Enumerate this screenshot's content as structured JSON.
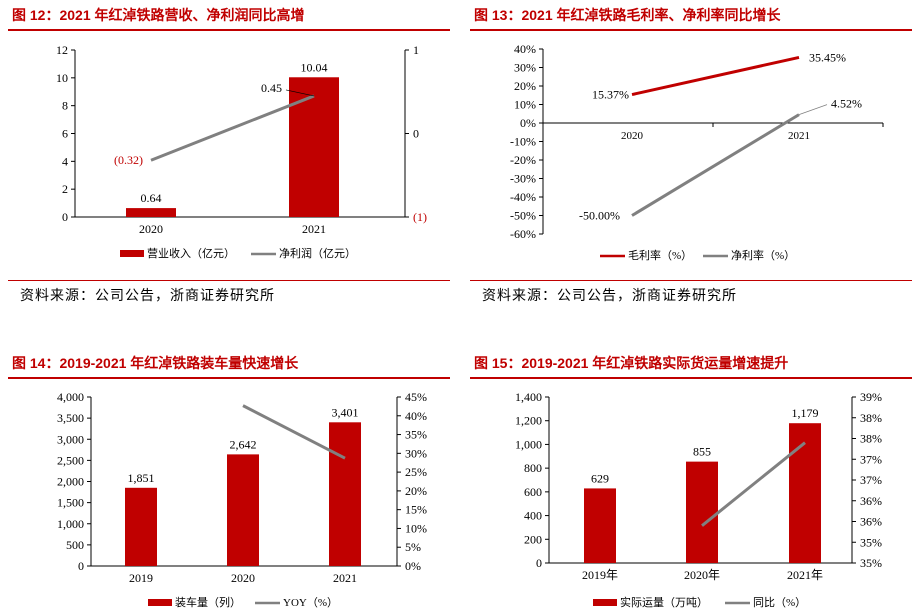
{
  "panels": [
    {
      "title": "图 12：2021 年红淖铁路营收、净利润同比高增",
      "source": "资料来源：公司公告，浙商证券研究所",
      "chart_data": {
        "type": "bar+line",
        "categories": [
          "2020",
          "2021"
        ],
        "bar": {
          "name": "营业收入（亿元）",
          "values": [
            0.64,
            10.04
          ],
          "labels": [
            "0.64",
            "10.04"
          ],
          "color": "#c00000"
        },
        "line": {
          "name": "净利润（亿元）",
          "values": [
            -0.32,
            0.45
          ],
          "labels": [
            "(0.32)",
            "0.45"
          ],
          "label_colors": [
            "#c00000",
            "#000000"
          ],
          "color": "#808080"
        },
        "ylim_left": [
          0,
          12
        ],
        "yticks_left": [
          "0",
          "2",
          "4",
          "6",
          "8",
          "10",
          "12"
        ],
        "ylim_right": [
          -1,
          1
        ],
        "yticks_right": [
          "(1)",
          "0",
          "1"
        ]
      }
    },
    {
      "title": "图 13：2021 年红淖铁路毛利率、净利率同比增长",
      "source": "资料来源：公司公告，浙商证券研究所",
      "chart_data": {
        "type": "line",
        "categories": [
          "2020",
          "2021"
        ],
        "series": [
          {
            "name": "毛利率（%）",
            "values": [
              15.37,
              35.45
            ],
            "labels": [
              "15.37%",
              "35.45%"
            ],
            "color": "#c00000"
          },
          {
            "name": "净利率（%）",
            "values": [
              -50.0,
              4.52
            ],
            "labels": [
              "-50.00%",
              "4.52%"
            ],
            "color": "#808080"
          }
        ],
        "ylim": [
          -60,
          40
        ],
        "yticks": [
          "-60%",
          "-50%",
          "-40%",
          "-30%",
          "-20%",
          "-10%",
          "0%",
          "10%",
          "20%",
          "30%",
          "40%"
        ]
      }
    },
    {
      "title": "图 14：2019-2021 年红淖铁路装车量快速增长",
      "chart_data": {
        "type": "bar+line",
        "categories": [
          "2019",
          "2020",
          "2021"
        ],
        "bar": {
          "name": "装车量（列）",
          "values": [
            1851,
            2642,
            3401
          ],
          "labels": [
            "1,851",
            "2,642",
            "3,401"
          ],
          "color": "#c00000"
        },
        "line": {
          "name": "YOY（%）",
          "values": [
            null,
            42.7,
            28.7
          ],
          "color": "#808080"
        },
        "ylim_left": [
          0,
          4000
        ],
        "yticks_left": [
          "0",
          "500",
          "1,000",
          "1,500",
          "2,000",
          "2,500",
          "3,000",
          "3,500",
          "4,000"
        ],
        "ylim_right": [
          0,
          45
        ],
        "yticks_right": [
          "0%",
          "5%",
          "10%",
          "15%",
          "20%",
          "25%",
          "30%",
          "35%",
          "40%",
          "45%"
        ]
      }
    },
    {
      "title": "图 15：2019-2021 年红淖铁路实际货运量增速提升",
      "chart_data": {
        "type": "bar+line",
        "categories": [
          "2019年",
          "2020年",
          "2021年"
        ],
        "bar": {
          "name": "实际运量（万吨）",
          "values": [
            629,
            855,
            1179
          ],
          "labels": [
            "629",
            "855",
            "1,179"
          ],
          "color": "#c00000"
        },
        "line": {
          "name": "同比（%）",
          "values": [
            null,
            35.9,
            37.9
          ],
          "color": "#808080"
        },
        "ylim_left": [
          0,
          1400
        ],
        "yticks_left": [
          "0",
          "200",
          "400",
          "600",
          "800",
          "1,000",
          "1,200",
          "1,400"
        ],
        "ylim_right": [
          35,
          39
        ],
        "yticks_right": [
          "35%",
          "35%",
          "36%",
          "36%",
          "37%",
          "37%",
          "38%",
          "38%",
          "39%"
        ]
      }
    }
  ]
}
